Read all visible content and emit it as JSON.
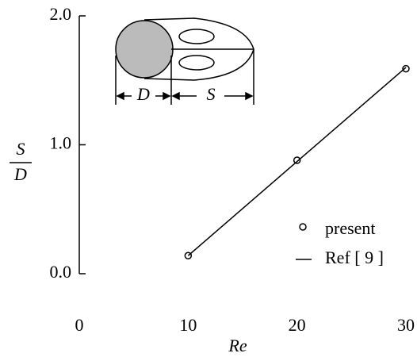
{
  "chart_data": {
    "type": "scatter",
    "x_label": "Re",
    "y_label_numerator": "S",
    "y_label_denominator": "D",
    "annotations": [
      "D",
      "S"
    ],
    "xlim": [
      0,
      30
    ],
    "xticks": [
      0,
      10,
      20,
      30
    ],
    "ylim": [
      0,
      2
    ],
    "yticks": [
      {
        "value": 0,
        "label": "0.0"
      },
      {
        "value": 1,
        "label": "1.0"
      },
      {
        "value": 2,
        "label": "2.0"
      }
    ],
    "series": [
      {
        "name": "present",
        "style": "marker",
        "color": "#000000",
        "x": [
          10,
          20,
          30
        ],
        "values": [
          0.14,
          0.88,
          1.59
        ]
      },
      {
        "name": "Ref [ 9 ]",
        "style": "line",
        "color": "#000000",
        "x": [
          10,
          30
        ],
        "values": [
          0.14,
          1.6
        ]
      }
    ]
  }
}
